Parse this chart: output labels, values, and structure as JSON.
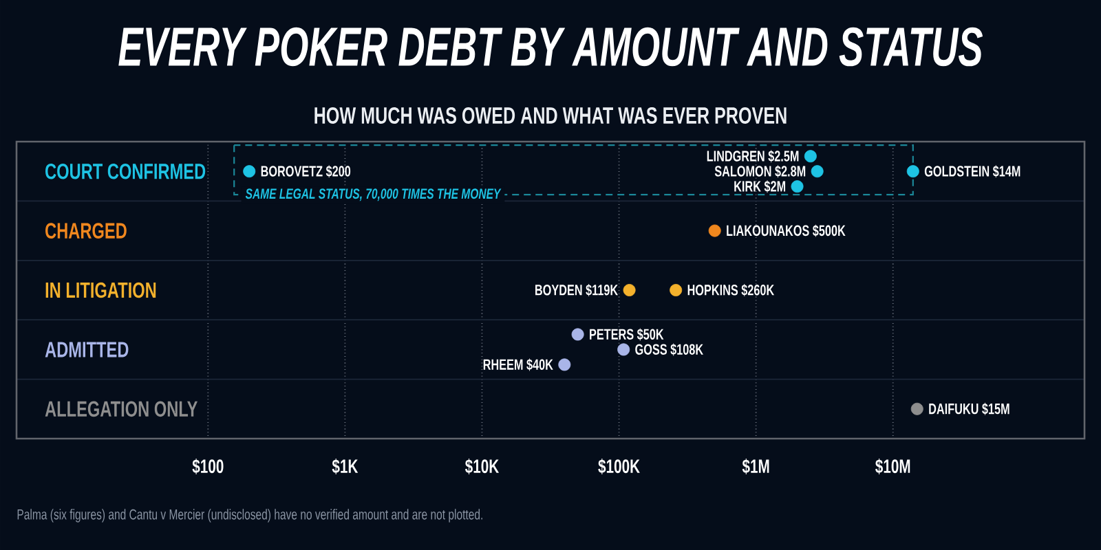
{
  "chart_data": {
    "type": "scatter",
    "title": "EVERY POKER DEBT BY AMOUNT AND STATUS",
    "subtitle": "HOW MUCH WAS OWED AND WHAT WAS EVER PROVEN",
    "orientation": "horizontal",
    "categories": [
      "COURT CONFIRMED",
      "CHARGED",
      "IN LITIGATION",
      "ADMITTED",
      "ALLEGATION ONLY"
    ],
    "log": "x",
    "xlim": [
      4,
      250000000
    ],
    "xticks": [
      {
        "value": 100,
        "label": "$100"
      },
      {
        "value": 1000,
        "label": "$1K"
      },
      {
        "value": 10000,
        "label": "$10K"
      },
      {
        "value": 100000,
        "label": "$100K"
      },
      {
        "value": 1000000,
        "label": "$1M"
      },
      {
        "value": 10000000,
        "label": "$10M"
      }
    ],
    "grid": "x",
    "marker": "circle",
    "series": [
      {
        "color": "#1ec3e4",
        "values": [
          200,
          null,
          null,
          null,
          null
        ],
        "value_labels": [
          "BOROVETZ $200",
          null,
          null,
          null,
          null
        ]
      },
      {
        "color": "#1ec3e4",
        "values": [
          2000000,
          null,
          null,
          null,
          null
        ],
        "value_labels": [
          "KIRK $2M",
          null,
          null,
          null,
          null
        ]
      },
      {
        "color": "#1ec3e4",
        "values": [
          2500000,
          null,
          null,
          null,
          null
        ],
        "value_labels": [
          "LINDGREN $2.5M",
          null,
          null,
          null,
          null
        ]
      },
      {
        "color": "#1ec3e4",
        "values": [
          2800000,
          null,
          null,
          null,
          null
        ],
        "value_labels": [
          "SALOMON $2.8M",
          null,
          null,
          null,
          null
        ]
      },
      {
        "color": "#1ec3e4",
        "values": [
          14000000,
          null,
          null,
          null,
          null
        ],
        "value_labels": [
          "GOLDSTEIN $14M",
          null,
          null,
          null,
          null
        ]
      },
      {
        "color": "#f0871e",
        "values": [
          null,
          500000,
          null,
          null,
          null
        ],
        "value_labels": [
          null,
          "LIAKOUNAKOS $500K",
          null,
          null,
          null
        ]
      },
      {
        "color": "#f4b12c",
        "values": [
          null,
          null,
          119000,
          null,
          null
        ],
        "value_labels": [
          null,
          null,
          "BOYDEN $119K",
          null,
          null
        ]
      },
      {
        "color": "#f4b12c",
        "values": [
          null,
          null,
          260000,
          null,
          null
        ],
        "value_labels": [
          null,
          null,
          "HOPKINS $260K",
          null,
          null
        ]
      },
      {
        "color": "#a9b5e8",
        "values": [
          null,
          null,
          null,
          40000,
          null
        ],
        "value_labels": [
          null,
          null,
          null,
          "RHEEM $40K",
          null
        ]
      },
      {
        "color": "#a9b5e8",
        "values": [
          null,
          null,
          null,
          50000,
          null
        ],
        "value_labels": [
          null,
          null,
          null,
          "PETERS $50K",
          null
        ]
      },
      {
        "color": "#a9b5e8",
        "values": [
          null,
          null,
          null,
          108000,
          null
        ],
        "value_labels": [
          null,
          null,
          null,
          "GOSS $108K",
          null
        ]
      },
      {
        "color": "#8e8e8e",
        "values": [
          null,
          null,
          null,
          null,
          15000000
        ],
        "value_labels": [
          null,
          null,
          null,
          null,
          "DAIFUKU $15M"
        ]
      }
    ],
    "annotations": [
      {
        "text": "SAME LEGAL STATUS, 70,000 TIMES THE MONEY",
        "x": 200,
        "y": "COURT CONFIRMED"
      },
      "Palma (six figures) and Cantu v Mercier (undisclosed) have no verified amount and are not plotted."
    ]
  }
}
